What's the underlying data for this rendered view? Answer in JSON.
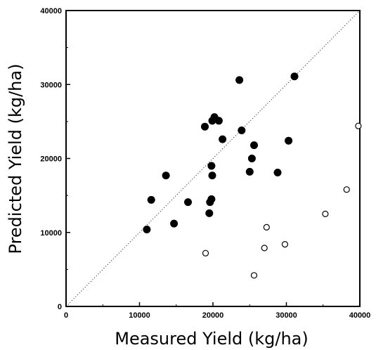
{
  "chart_data": {
    "type": "scatter",
    "title": "",
    "xlabel": "Measured Yield (kg/ha)",
    "ylabel": "Predicted Yield (kg/ha)",
    "xlim": [
      0,
      40000
    ],
    "ylim": [
      0,
      40000
    ],
    "xticks": [
      "0",
      "10000",
      "20000",
      "30000",
      "40000"
    ],
    "yticks": [
      "0",
      "10000",
      "20000",
      "30000",
      "40000"
    ],
    "reference_line": "1:1 dotted line",
    "grid": false,
    "series": [
      {
        "marker": "filled-circle",
        "points": [
          [
            11000,
            10400
          ],
          [
            11600,
            14400
          ],
          [
            13600,
            17700
          ],
          [
            14700,
            11200
          ],
          [
            16600,
            14100
          ],
          [
            18900,
            24300
          ],
          [
            19500,
            12600
          ],
          [
            19600,
            14100
          ],
          [
            19800,
            14500
          ],
          [
            19800,
            19000
          ],
          [
            19900,
            17700
          ],
          [
            19900,
            25100
          ],
          [
            20200,
            25600
          ],
          [
            20800,
            25100
          ],
          [
            21300,
            22600
          ],
          [
            23600,
            30600
          ],
          [
            23900,
            23800
          ],
          [
            25000,
            18200
          ],
          [
            25300,
            20000
          ],
          [
            25600,
            21800
          ],
          [
            28800,
            18100
          ],
          [
            30300,
            22400
          ],
          [
            31100,
            31100
          ]
        ]
      },
      {
        "marker": "open-circle",
        "points": [
          [
            19000,
            7200
          ],
          [
            25600,
            4200
          ],
          [
            27000,
            7900
          ],
          [
            27300,
            10700
          ],
          [
            29800,
            8400
          ],
          [
            35300,
            12500
          ],
          [
            38200,
            15800
          ],
          [
            39800,
            24400
          ]
        ]
      }
    ]
  }
}
